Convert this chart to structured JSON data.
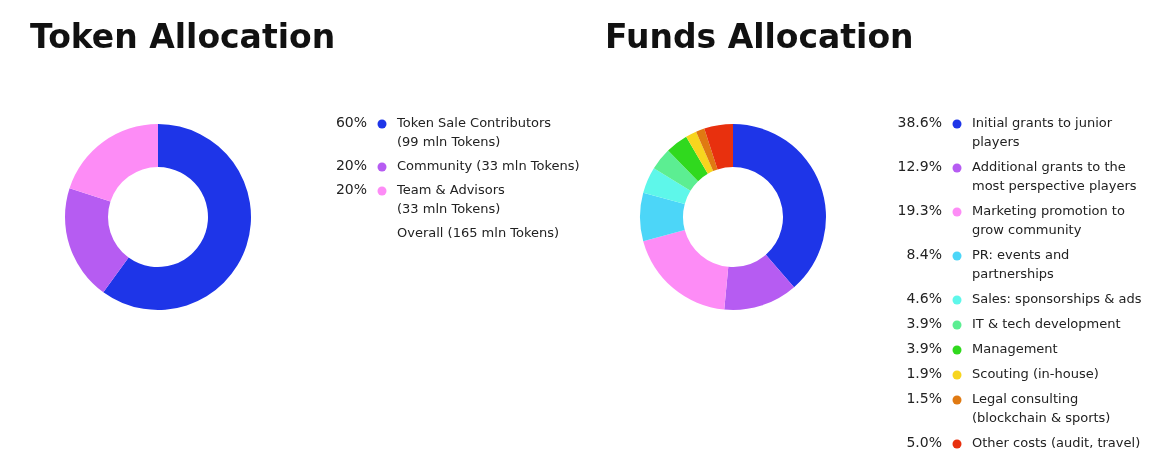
{
  "chart_data": [
    {
      "type": "donut",
      "title": "Token Allocation",
      "legend": "right",
      "categories": [
        "Token Sale Contributors\n(99 mln Tokens)",
        "Community (33 mln Tokens)",
        "Team & Advisors\n(33 mln Tokens)"
      ],
      "values": [
        60,
        20,
        20
      ],
      "value_labels": [
        "60%",
        "20%",
        "20%"
      ],
      "colors": [
        "#1e35e8",
        "#b65cf2",
        "#fd8cf6"
      ],
      "annotations": [
        "Overall (165 mln Tokens)"
      ]
    },
    {
      "type": "donut",
      "title": "Funds Allocation",
      "legend": "right",
      "categories": [
        "Initial grants to junior\nplayers",
        "Additional grants to the\nmost perspective players",
        "Marketing promotion to\ngrow community",
        "PR: events and\npartnerships",
        "Sales: sponsorships & ads",
        "IT & tech development",
        "Management",
        "Scouting (in-house)",
        "Legal consulting\n(blockchain & sports)",
        "Other costs (audit, travel)"
      ],
      "values": [
        38.6,
        12.9,
        19.3,
        8.4,
        4.6,
        3.9,
        3.9,
        1.9,
        1.5,
        5.0
      ],
      "value_labels": [
        "38.6%",
        "12.9%",
        "19.3%",
        "8.4%",
        "4.6%",
        "3.9%",
        "3.9%",
        "1.9%",
        "1.5%",
        "5.0%"
      ],
      "colors": [
        "#1e35e8",
        "#b65cf2",
        "#fd8cf6",
        "#4cd6f8",
        "#5ef7ea",
        "#5cee92",
        "#30d91e",
        "#f7d51e",
        "#e07a12",
        "#e8300e"
      ]
    }
  ]
}
